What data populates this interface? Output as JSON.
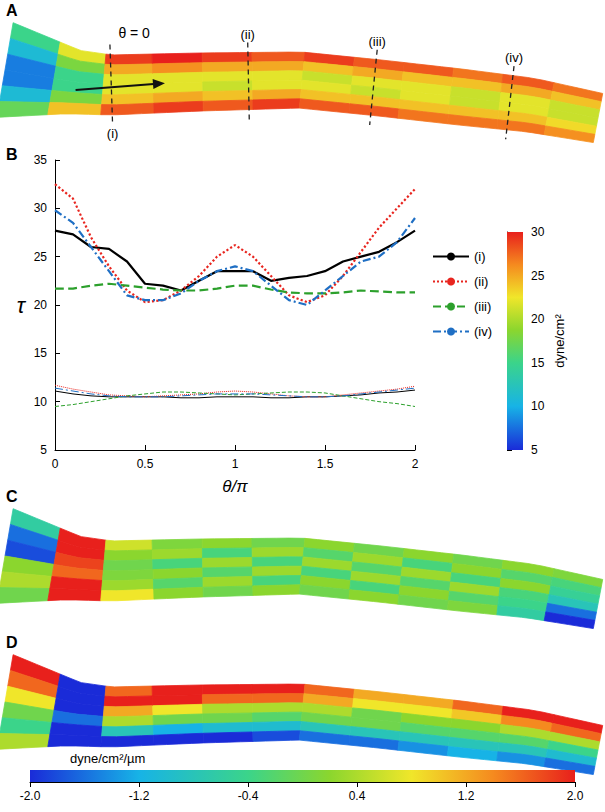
{
  "chart_data": [
    {
      "type": "heatmap",
      "panel": "A",
      "annotations": {
        "arrow_label": "θ = 0",
        "sections": [
          "(i)",
          "(ii)",
          "(iii)",
          "(iv)"
        ]
      },
      "clim": [
        5,
        30
      ],
      "colorbar": {
        "label": "dyne/cm²",
        "ticks": [
          5,
          10,
          15,
          20,
          25,
          30
        ]
      },
      "values": [
        [
          15,
          11,
          8,
          8,
          11,
          17
        ],
        [
          22,
          18,
          15,
          15,
          18,
          24
        ],
        [
          29,
          25,
          22,
          22,
          24,
          28
        ],
        [
          30,
          26,
          22,
          22,
          25,
          29
        ],
        [
          29,
          25,
          22,
          21,
          24,
          28
        ],
        [
          28,
          25,
          22,
          22,
          25,
          29
        ],
        [
          29,
          24,
          21,
          22,
          24,
          28
        ],
        [
          28,
          25,
          22,
          21,
          24,
          28
        ],
        [
          28,
          24,
          22,
          22,
          24,
          27
        ],
        [
          27,
          24,
          21,
          21,
          24,
          27
        ],
        [
          28,
          25,
          22,
          22,
          24,
          27
        ],
        [
          27,
          24,
          21,
          21,
          23,
          26
        ]
      ]
    },
    {
      "type": "line",
      "panel": "B",
      "xlabel": "θ/π",
      "ylabel": "τ",
      "x": [
        0,
        0.1,
        0.2,
        0.3,
        0.4,
        0.5,
        0.6,
        0.7,
        0.8,
        0.9,
        1,
        1.1,
        1.2,
        1.3,
        1.4,
        1.5,
        1.6,
        1.7,
        1.8,
        1.9,
        2
      ],
      "xlim": [
        0,
        2
      ],
      "xticks": [
        0,
        0.5,
        1,
        1.5,
        2
      ],
      "ylim": [
        5,
        35
      ],
      "yticks": [
        5,
        10,
        15,
        20,
        25,
        30,
        35
      ],
      "legend": "right",
      "series": [
        {
          "name": "(i)",
          "color": "#000000",
          "line_style": "solid",
          "values": [
            27.7,
            27.3,
            26,
            25.8,
            24.5,
            22.2,
            22,
            21.5,
            22.5,
            23.5,
            23.5,
            23.5,
            22.5,
            22.8,
            23,
            23.5,
            24.5,
            25,
            25.5,
            26.5,
            27.7
          ],
          "lower_values": [
            11.1,
            10.8,
            10.6,
            10.5,
            10.5,
            10.5,
            10.5,
            10.4,
            10.4,
            10.5,
            10.5,
            10.5,
            10.4,
            10.4,
            10.5,
            10.5,
            10.6,
            10.7,
            10.9,
            11,
            11.2
          ]
        },
        {
          "name": "(ii)",
          "color": "#e8251f",
          "line_style": "dotted",
          "values": [
            32.5,
            31,
            27,
            24,
            21.5,
            20.3,
            20.5,
            21.5,
            23,
            25,
            26.2,
            25,
            23,
            21,
            20.3,
            21,
            23,
            25.5,
            28,
            30,
            32
          ],
          "lower_values": [
            11.7,
            11.3,
            11,
            10.7,
            10.6,
            10.5,
            10.6,
            10.7,
            10.8,
            11,
            11.1,
            11,
            10.8,
            10.6,
            10.5,
            10.5,
            10.7,
            10.9,
            11.1,
            11.3,
            11.6
          ]
        },
        {
          "name": "(iii)",
          "color": "#2ca02c",
          "line_style": "dashed",
          "values": [
            21.7,
            21.7,
            22,
            22.2,
            22,
            21.8,
            21.6,
            21.5,
            21.5,
            21.7,
            22,
            22,
            21.6,
            21.3,
            21.2,
            21.2,
            21.3,
            21.5,
            21.4,
            21.3,
            21.3
          ],
          "lower_values": [
            9.5,
            9.7,
            10,
            10.3,
            10.6,
            10.8,
            11,
            11,
            10.9,
            10.8,
            10.7,
            10.8,
            10.9,
            11,
            11,
            10.9,
            10.6,
            10.3,
            10,
            9.8,
            9.5
          ]
        },
        {
          "name": "(iv)",
          "color": "#1f6fc4",
          "line_style": "dashdot",
          "values": [
            29.8,
            28.5,
            26,
            23.5,
            21,
            20.5,
            20.5,
            21.2,
            22.5,
            23.5,
            24,
            23.5,
            22,
            20.5,
            20,
            21.5,
            23,
            24.5,
            25,
            26.5,
            29
          ],
          "lower_values": [
            11.4,
            11.1,
            10.8,
            10.6,
            10.5,
            10.5,
            10.5,
            10.6,
            10.7,
            10.8,
            10.8,
            10.8,
            10.7,
            10.6,
            10.5,
            10.5,
            10.6,
            10.8,
            11,
            11.2,
            11.4
          ]
        }
      ]
    },
    {
      "type": "heatmap",
      "panel": "C",
      "clim": [
        -2,
        2
      ],
      "values": [
        [
          -0.6,
          -1.6,
          -1.8,
          0.2,
          0.4,
          0
        ],
        [
          2,
          2,
          1.8,
          1.6,
          2,
          2
        ],
        [
          0.6,
          0.2,
          0,
          0.1,
          0.3,
          0.8
        ],
        [
          0.1,
          0.3,
          -0.3,
          0.2,
          -0.2,
          0.2
        ],
        [
          0.2,
          -0.3,
          0.3,
          -0.2,
          0.3,
          0
        ],
        [
          0,
          0.3,
          -0.3,
          0.3,
          -0.3,
          0.2
        ],
        [
          0.2,
          -0.2,
          0.3,
          -0.3,
          0.2,
          0
        ],
        [
          0,
          0.3,
          -0.2,
          0.3,
          -0.3,
          0.2
        ],
        [
          0.2,
          -0.3,
          0.3,
          -0.2,
          0.2,
          0
        ],
        [
          0,
          0.2,
          -0.3,
          0.3,
          -0.2,
          0.1
        ],
        [
          0.2,
          -0.2,
          0.2,
          -0.3,
          -0.4,
          -0.6
        ],
        [
          0.1,
          -0.3,
          -0.5,
          -0.8,
          -1.6,
          -2
        ]
      ]
    },
    {
      "type": "heatmap",
      "panel": "D",
      "clim": [
        -2,
        2
      ],
      "colorbar": {
        "label": "dyne/cm²/µm",
        "ticks": [
          {
            "value": -2,
            "label": "-2.0"
          },
          {
            "value": -1.2,
            "label": "-1.2"
          },
          {
            "value": -0.4,
            "label": "-0.4"
          },
          {
            "value": 0.4,
            "label": "0.4"
          },
          {
            "value": 1.2,
            "label": "1.2"
          },
          {
            "value": 2,
            "label": "2.0"
          }
        ]
      },
      "values": [
        [
          2,
          1.6,
          0.8,
          0,
          -0.4,
          0.4
        ],
        [
          -2,
          -2,
          -2,
          -1.6,
          -2,
          -2
        ],
        [
          1.6,
          2,
          1.2,
          0.4,
          -0.8,
          -2
        ],
        [
          2,
          2,
          0.8,
          0,
          -1.2,
          -2
        ],
        [
          2,
          1.6,
          0.4,
          0,
          -1,
          -2
        ],
        [
          2,
          1.6,
          0.4,
          -0.2,
          -1,
          -1.8
        ],
        [
          1.6,
          1.2,
          0.4,
          0,
          -0.8,
          -1.6
        ],
        [
          1.2,
          0.8,
          0,
          0,
          -0.8,
          -1.6
        ],
        [
          1.2,
          0.8,
          0.2,
          -0.2,
          -0.8,
          -1.4
        ],
        [
          1.6,
          1,
          0.2,
          -0.2,
          -0.8,
          -1.2
        ],
        [
          2,
          1.4,
          0.4,
          -0.2,
          -0.8,
          -1.4
        ],
        [
          2,
          1.6,
          0.4,
          -0.4,
          -1,
          -1.6
        ]
      ]
    }
  ]
}
